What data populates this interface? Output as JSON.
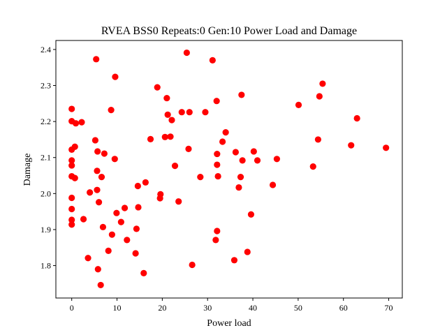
{
  "chart_data": {
    "type": "scatter",
    "title": "RVEA BSS0 Repeats:0 Gen:10 Power Load and Damage",
    "xlabel": "Power load",
    "ylabel": "Damage",
    "xlim": [
      -3.5,
      73.0
    ],
    "ylim": [
      1.71,
      2.425
    ],
    "xticks": [
      0,
      10,
      20,
      30,
      40,
      50,
      60,
      70
    ],
    "yticks": [
      1.8,
      1.9,
      2.0,
      2.1,
      2.2,
      2.3,
      2.4
    ],
    "xtick_labels": [
      "0",
      "10",
      "20",
      "30",
      "40",
      "50",
      "60",
      "70"
    ],
    "ytick_labels": [
      "1.8",
      "1.9",
      "2.0",
      "2.1",
      "2.2",
      "2.3",
      "2.4"
    ],
    "grid": false,
    "legend": "none",
    "marker_color": "#ff0000",
    "points": [
      [
        0.0,
        2.235
      ],
      [
        0.0,
        2.201
      ],
      [
        0.0,
        2.122
      ],
      [
        0.0,
        2.092
      ],
      [
        0.0,
        2.078
      ],
      [
        0.0,
        2.048
      ],
      [
        0.0,
        1.988
      ],
      [
        0.0,
        1.957
      ],
      [
        0.0,
        1.927
      ],
      [
        0.0,
        1.914
      ],
      [
        0.7,
        2.13
      ],
      [
        0.7,
        2.043
      ],
      [
        0.9,
        2.195
      ],
      [
        2.2,
        2.198
      ],
      [
        2.6,
        1.929
      ],
      [
        3.6,
        1.821
      ],
      [
        4.0,
        2.003
      ],
      [
        5.2,
        2.148
      ],
      [
        5.4,
        2.373
      ],
      [
        5.6,
        2.063
      ],
      [
        5.6,
        2.01
      ],
      [
        5.7,
        2.117
      ],
      [
        5.8,
        1.79
      ],
      [
        6.0,
        1.976
      ],
      [
        6.4,
        1.746
      ],
      [
        6.6,
        2.046
      ],
      [
        6.9,
        1.907
      ],
      [
        7.2,
        2.111
      ],
      [
        8.1,
        1.841
      ],
      [
        8.7,
        2.232
      ],
      [
        8.9,
        1.886
      ],
      [
        9.5,
        2.096
      ],
      [
        9.6,
        2.324
      ],
      [
        9.9,
        1.946
      ],
      [
        10.9,
        1.921
      ],
      [
        11.7,
        1.96
      ],
      [
        12.2,
        1.871
      ],
      [
        14.1,
        1.834
      ],
      [
        14.3,
        1.902
      ],
      [
        14.6,
        2.021
      ],
      [
        14.7,
        1.962
      ],
      [
        15.9,
        1.779
      ],
      [
        16.3,
        2.031
      ],
      [
        17.4,
        2.151
      ],
      [
        18.9,
        2.295
      ],
      [
        19.5,
        1.987
      ],
      [
        19.6,
        1.998
      ],
      [
        20.6,
        2.157
      ],
      [
        21.0,
        2.265
      ],
      [
        21.2,
        2.219
      ],
      [
        21.8,
        2.158
      ],
      [
        22.1,
        2.204
      ],
      [
        22.8,
        2.077
      ],
      [
        23.6,
        1.978
      ],
      [
        24.3,
        2.226
      ],
      [
        25.4,
        2.391
      ],
      [
        25.8,
        2.124
      ],
      [
        26.0,
        2.226
      ],
      [
        26.6,
        1.802
      ],
      [
        28.4,
        2.046
      ],
      [
        29.5,
        2.226
      ],
      [
        31.1,
        2.37
      ],
      [
        31.8,
        1.871
      ],
      [
        32.0,
        2.257
      ],
      [
        32.1,
        2.11
      ],
      [
        32.1,
        2.08
      ],
      [
        32.1,
        1.896
      ],
      [
        32.3,
        2.048
      ],
      [
        33.3,
        2.144
      ],
      [
        34.0,
        2.17
      ],
      [
        35.9,
        1.815
      ],
      [
        36.2,
        2.115
      ],
      [
        36.9,
        2.017
      ],
      [
        37.3,
        2.046
      ],
      [
        37.5,
        2.274
      ],
      [
        37.7,
        2.092
      ],
      [
        38.8,
        1.838
      ],
      [
        39.6,
        1.942
      ],
      [
        40.2,
        2.117
      ],
      [
        41.0,
        2.092
      ],
      [
        44.4,
        2.024
      ],
      [
        45.3,
        2.096
      ],
      [
        50.1,
        2.246
      ],
      [
        53.3,
        2.075
      ],
      [
        54.4,
        2.15
      ],
      [
        54.7,
        2.27
      ],
      [
        55.4,
        2.305
      ],
      [
        61.7,
        2.134
      ],
      [
        63.0,
        2.209
      ],
      [
        69.4,
        2.127
      ]
    ]
  }
}
